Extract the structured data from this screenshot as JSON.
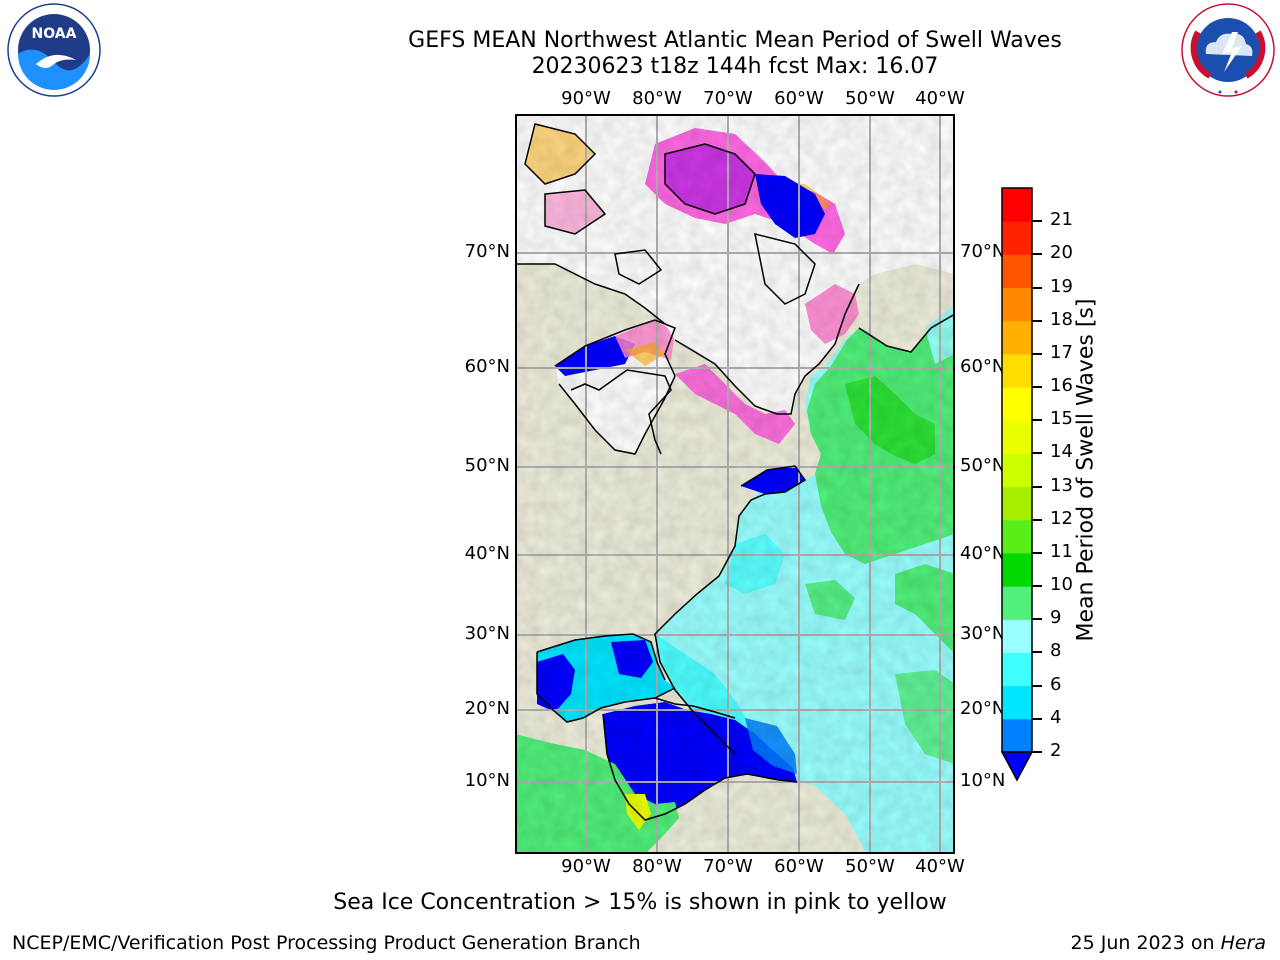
{
  "header": {
    "title_line1": "GEFS MEAN Northwest Atlantic Mean Period of Swell Waves",
    "title_line2": "20230623 t18z 144h fcst   Max: 16.07"
  },
  "logos": {
    "left": {
      "name": "NOARA logo",
      "text": "NOAA",
      "ring_text": "NATIONAL OCEANIC AND ATMOSPHERIC ADMINISTRATION · U.S. DEPARTMENT OF COMMERCE"
    },
    "right": {
      "name": "National Weather Service logo",
      "ring_text": "NATIONAL WEATHER SERVICE"
    }
  },
  "map": {
    "lon_labels": [
      "90°W",
      "80°W",
      "70°W",
      "60°W",
      "50°W",
      "40°W"
    ],
    "lat_labels": [
      "70°N",
      "60°N",
      "50°N",
      "40°N",
      "30°N",
      "20°N",
      "10°N"
    ],
    "land_color": "#efeedc",
    "ice_note": "Sea Ice Concentration > 15% is shown in pink to yellow"
  },
  "colorbar": {
    "label": "Mean Period of Swell Waves [s]",
    "ticks": [
      "2",
      "4",
      "6",
      "8",
      "9",
      "10",
      "11",
      "12",
      "13",
      "14",
      "15",
      "16",
      "17",
      "18",
      "19",
      "20",
      "21"
    ],
    "colors": [
      "#0000ff",
      "#0080ff",
      "#00e6ff",
      "#40ffff",
      "#99ffff",
      "#50f07a",
      "#00d800",
      "#5aee18",
      "#a8ee00",
      "#ccff00",
      "#ecff00",
      "#ffff00",
      "#ffdd00",
      "#ffb000",
      "#ff8800",
      "#ff5500",
      "#ff2400",
      "#ff0000"
    ]
  },
  "footer": {
    "left": "NCEP/EMC/Verification Post Processing Product Generation Branch",
    "right_prefix": "25 Jun 2023 on ",
    "right_host": "Hera"
  }
}
